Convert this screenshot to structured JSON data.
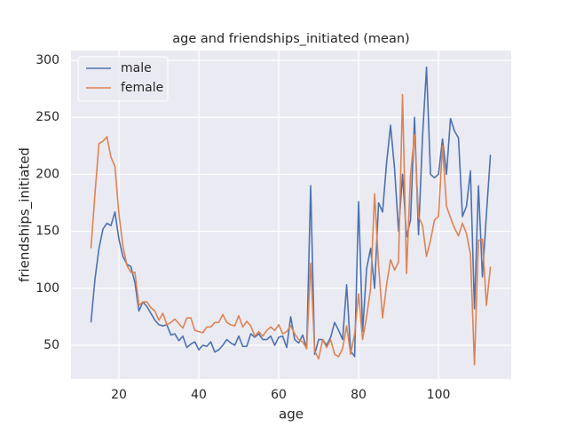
{
  "chart_data": {
    "type": "line",
    "title": "age and friendships_initiated (mean)",
    "x_label": "age",
    "y_label": "friendships_initiated",
    "x": [
      13,
      14,
      15,
      16,
      17,
      18,
      19,
      20,
      21,
      22,
      23,
      24,
      25,
      26,
      27,
      28,
      29,
      30,
      31,
      32,
      33,
      34,
      35,
      36,
      37,
      38,
      39,
      40,
      41,
      42,
      43,
      44,
      45,
      46,
      47,
      48,
      49,
      50,
      51,
      52,
      53,
      54,
      55,
      56,
      57,
      58,
      59,
      60,
      61,
      62,
      63,
      64,
      65,
      66,
      67,
      68,
      69,
      70,
      71,
      72,
      73,
      74,
      75,
      76,
      77,
      78,
      79,
      80,
      81,
      82,
      83,
      84,
      85,
      86,
      87,
      88,
      89,
      90,
      91,
      92,
      93,
      94,
      95,
      96,
      97,
      98,
      99,
      100,
      101,
      102,
      103,
      104,
      105,
      106,
      107,
      108,
      109,
      110,
      111,
      112,
      113
    ],
    "series": [
      {
        "name": "male",
        "color": "#4c72b0",
        "values": [
          70,
          108,
          135,
          152,
          157,
          155,
          167,
          143,
          128,
          121,
          119,
          105,
          80,
          88,
          84,
          78,
          72,
          68,
          67,
          68,
          59,
          60,
          54,
          58,
          48,
          51,
          53,
          46,
          50,
          49,
          53,
          44,
          46,
          50,
          55,
          52,
          50,
          58,
          49,
          49,
          60,
          57,
          60,
          55,
          55,
          58,
          50,
          57,
          58,
          48,
          75,
          55,
          52,
          59,
          47,
          190,
          42,
          55,
          55,
          50,
          57,
          70,
          63,
          55,
          103,
          45,
          40,
          176,
          62,
          117,
          135,
          100,
          175,
          167,
          210,
          243,
          205,
          150,
          200,
          145,
          160,
          250,
          147,
          233,
          294,
          200,
          197,
          200,
          231,
          200,
          249,
          238,
          232,
          163,
          172,
          203,
          82,
          190,
          110,
          165,
          217
        ]
      },
      {
        "name": "female",
        "color": "#dd8452",
        "values": [
          135,
          183,
          227,
          229,
          233,
          215,
          207,
          165,
          137,
          120,
          114,
          114,
          85,
          88,
          88,
          83,
          80,
          72,
          78,
          68,
          70,
          73,
          69,
          65,
          74,
          74,
          63,
          62,
          61,
          66,
          66,
          70,
          70,
          77,
          70,
          68,
          67,
          76,
          66,
          71,
          67,
          58,
          62,
          58,
          63,
          66,
          63,
          68,
          60,
          62,
          67,
          60,
          55,
          53,
          47,
          122,
          45,
          38,
          55,
          48,
          55,
          42,
          40,
          47,
          67,
          42,
          60,
          95,
          55,
          75,
          100,
          183,
          120,
          74,
          103,
          125,
          116,
          123,
          270,
          113,
          200,
          235,
          163,
          155,
          128,
          142,
          160,
          163,
          225,
          172,
          162,
          153,
          146,
          157,
          148,
          130,
          33,
          142,
          143,
          85,
          119
        ]
      }
    ],
    "xlim": [
      8,
      118.2
    ],
    "ylim": [
      20.4,
      308.6
    ],
    "xticks": [
      20,
      40,
      60,
      80,
      100
    ],
    "yticks": [
      50,
      100,
      150,
      200,
      250,
      300
    ],
    "grid": true,
    "legend": "upper left"
  }
}
